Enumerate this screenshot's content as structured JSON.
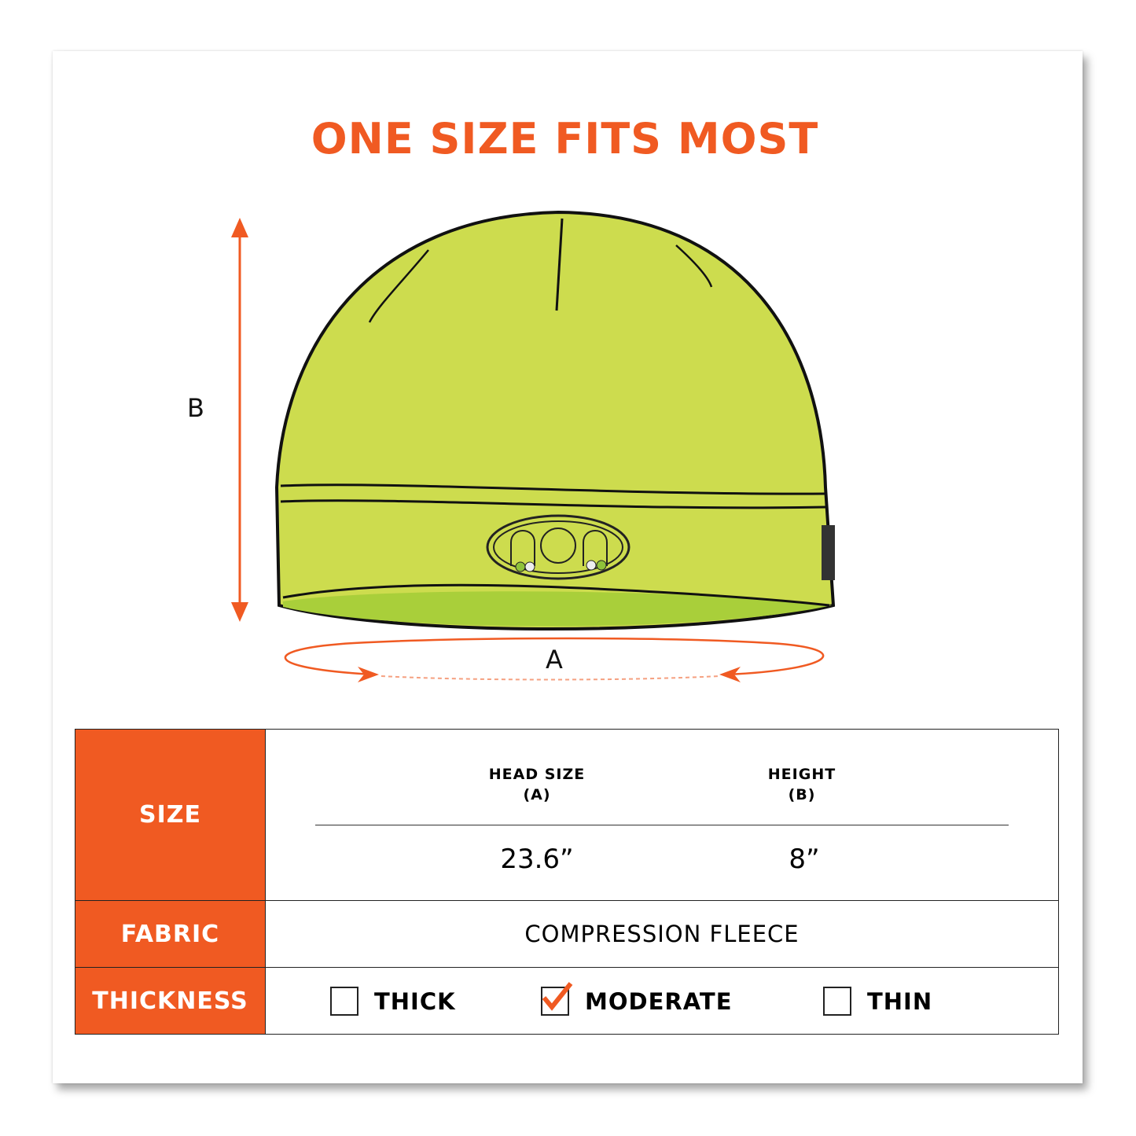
{
  "title": "ONE SIZE FITS MOST",
  "dimensions": {
    "height_label": "B",
    "circumference_label": "A"
  },
  "colors": {
    "accent": "#f05a22",
    "beanie": "#cddc4e"
  },
  "table": {
    "size": {
      "label": "SIZE",
      "columns": [
        {
          "header": "HEAD SIZE",
          "sub": "(A)",
          "value": "23.6”"
        },
        {
          "header": "HEIGHT",
          "sub": "(B)",
          "value": "8”"
        }
      ]
    },
    "fabric": {
      "label": "FABRIC",
      "value": "COMPRESSION FLEECE"
    },
    "thickness": {
      "label": "THICKNESS",
      "options": [
        {
          "label": "THICK",
          "checked": false
        },
        {
          "label": "MODERATE",
          "checked": true
        },
        {
          "label": "THIN",
          "checked": false
        }
      ]
    }
  }
}
